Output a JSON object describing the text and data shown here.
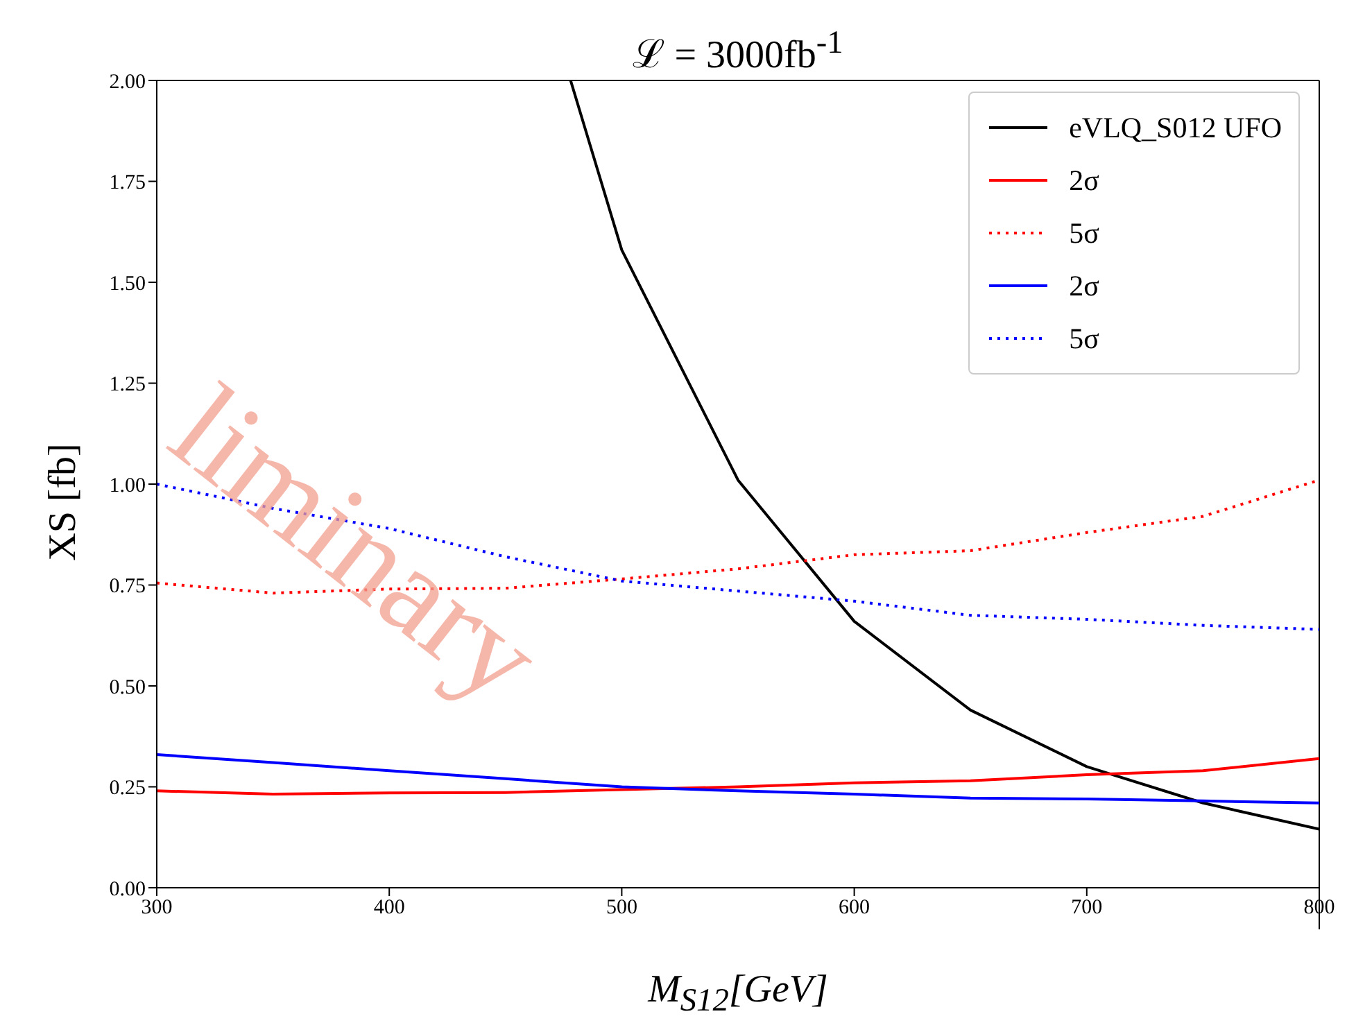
{
  "chart_data": {
    "type": "line",
    "title": "ℒ = 3000fb$^{-1}$",
    "xlabel": "M$_{S12}$[GeV]",
    "ylabel": "XS [fb]",
    "x": [
      300,
      350,
      400,
      450,
      500,
      550,
      600,
      650,
      700,
      750,
      800
    ],
    "series": [
      {
        "name": "eVLQ_S012 UFO",
        "color": "#000000",
        "line_style": "solid",
        "x": [
          478,
          500,
          550,
          600,
          650,
          700,
          750,
          800
        ],
        "values": [
          2.0,
          1.58,
          1.01,
          0.66,
          0.44,
          0.3,
          0.21,
          0.145
        ]
      },
      {
        "name": "2σ",
        "color": "#ff0000",
        "line_style": "solid",
        "values": [
          0.24,
          0.232,
          0.235,
          0.236,
          0.243,
          0.25,
          0.26,
          0.265,
          0.28,
          0.29,
          0.32
        ]
      },
      {
        "name": "5σ",
        "color": "#ff0000",
        "line_style": "dotted",
        "values": [
          0.755,
          0.73,
          0.74,
          0.742,
          0.765,
          0.79,
          0.825,
          0.835,
          0.88,
          0.92,
          1.01
        ]
      },
      {
        "name": "2σ",
        "color": "#0000ff",
        "line_style": "solid",
        "values": [
          0.33,
          0.31,
          0.29,
          0.27,
          0.25,
          0.24,
          0.232,
          0.222,
          0.22,
          0.215,
          0.21
        ]
      },
      {
        "name": "5σ",
        "color": "#0000ff",
        "line_style": "dotted",
        "values": [
          1.0,
          0.94,
          0.89,
          0.82,
          0.76,
          0.735,
          0.71,
          0.675,
          0.665,
          0.65,
          0.64
        ]
      }
    ],
    "xlim": [
      300,
      800
    ],
    "xticks": [
      300,
      400,
      500,
      600,
      700,
      800
    ],
    "ylim": [
      0,
      2
    ],
    "yticks": [
      {
        "value": 0,
        "label": "0.00"
      },
      {
        "value": 0.25,
        "label": "0.25"
      },
      {
        "value": 0.5,
        "label": "0.50"
      },
      {
        "value": 0.75,
        "label": "0.75"
      },
      {
        "value": 1,
        "label": "1.00"
      },
      {
        "value": 1.25,
        "label": "1.25"
      },
      {
        "value": 1.5,
        "label": "1.50"
      },
      {
        "value": 1.75,
        "label": "1.75"
      },
      {
        "value": 2,
        "label": "2.00"
      }
    ],
    "grid": false,
    "legend": "top right",
    "marker": "none",
    "annotations": [
      "liminary"
    ]
  }
}
